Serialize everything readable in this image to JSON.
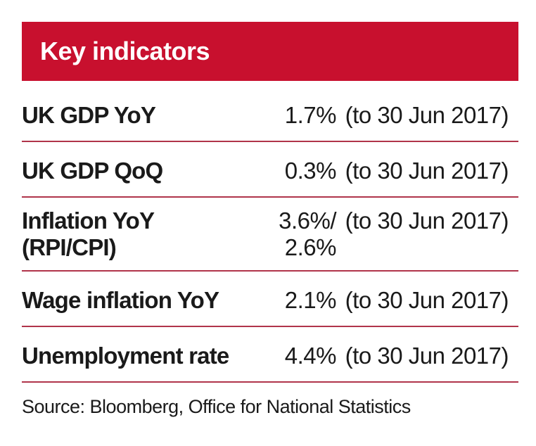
{
  "header": {
    "title": "Key indicators"
  },
  "rows": [
    {
      "label": "UK GDP YoY",
      "value": "1.7%",
      "period": "(to 30 Jun 2017)"
    },
    {
      "label": "UK GDP QoQ",
      "value": "0.3%",
      "period": "(to 30 Jun 2017)"
    },
    {
      "label": "Inflation YoY\n(RPI/CPI)",
      "value": "3.6%/\n2.6%",
      "period": "(to 30 Jun 2017)"
    },
    {
      "label": "Wage inflation YoY",
      "value": "2.1%",
      "period": "(to 30 Jun 2017)"
    },
    {
      "label": "Unemployment rate",
      "value": "4.4%",
      "period": "(to 30 Jun 2017)"
    }
  ],
  "source": "Source: Bloomberg, Office for National Statistics",
  "colors": {
    "header_bg": "#c8102e",
    "divider": "#b0344a"
  }
}
